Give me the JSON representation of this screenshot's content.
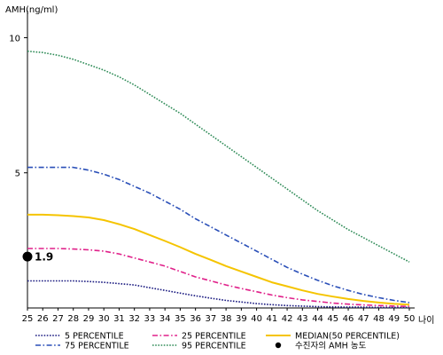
{
  "chart_data": {
    "type": "line",
    "ylabel": "AMH(ng/ml)",
    "xlabel": "나이",
    "x": [
      25,
      26,
      27,
      28,
      29,
      30,
      31,
      32,
      33,
      34,
      35,
      36,
      37,
      38,
      39,
      40,
      41,
      42,
      43,
      44,
      45,
      46,
      47,
      48,
      49,
      50
    ],
    "xlim": [
      25,
      50
    ],
    "ylim": [
      0,
      11
    ],
    "yticks": [
      5,
      10
    ],
    "series": [
      {
        "name": "5 PERCENTILE",
        "color": "#1a1a80",
        "dash": "dotted",
        "values": [
          1.0,
          1.0,
          1.0,
          1.0,
          0.98,
          0.95,
          0.9,
          0.85,
          0.75,
          0.65,
          0.55,
          0.45,
          0.36,
          0.28,
          0.22,
          0.16,
          0.12,
          0.09,
          0.07,
          0.05,
          0.04,
          0.03,
          0.03,
          0.02,
          0.02,
          0.02
        ]
      },
      {
        "name": "25 PERCENTILE",
        "color": "#e0218a",
        "dash": "dashdot",
        "values": [
          2.2,
          2.2,
          2.2,
          2.18,
          2.15,
          2.1,
          2.0,
          1.85,
          1.7,
          1.55,
          1.35,
          1.15,
          1.0,
          0.85,
          0.72,
          0.6,
          0.48,
          0.38,
          0.3,
          0.24,
          0.18,
          0.14,
          0.11,
          0.09,
          0.07,
          0.06
        ]
      },
      {
        "name": "MEDIAN(50 PERCENTILE)",
        "color": "#f5c400",
        "dash": "solid",
        "values": [
          3.45,
          3.45,
          3.43,
          3.4,
          3.35,
          3.25,
          3.1,
          2.92,
          2.7,
          2.48,
          2.25,
          2.0,
          1.78,
          1.55,
          1.35,
          1.15,
          0.95,
          0.8,
          0.65,
          0.52,
          0.42,
          0.33,
          0.26,
          0.2,
          0.15,
          0.12
        ]
      },
      {
        "name": "75 PERCENTILE",
        "color": "#2a4fb8",
        "dash": "dashdot",
        "values": [
          5.2,
          5.2,
          5.2,
          5.2,
          5.1,
          4.95,
          4.75,
          4.5,
          4.25,
          3.95,
          3.65,
          3.3,
          3.0,
          2.7,
          2.4,
          2.1,
          1.8,
          1.5,
          1.25,
          1.02,
          0.82,
          0.65,
          0.5,
          0.38,
          0.28,
          0.2
        ]
      },
      {
        "name": "95 PERCENTILE",
        "color": "#2e8b57",
        "dash": "dotted",
        "values": [
          9.5,
          9.45,
          9.35,
          9.2,
          9.0,
          8.8,
          8.55,
          8.25,
          7.9,
          7.55,
          7.2,
          6.8,
          6.4,
          6.0,
          5.6,
          5.2,
          4.8,
          4.4,
          4.0,
          3.6,
          3.25,
          2.9,
          2.6,
          2.3,
          2.0,
          1.7
        ]
      }
    ],
    "marker": {
      "name": "수진자의 AMH 농도",
      "x": 25,
      "y": 1.9,
      "label": "1.9",
      "color": "#000000"
    },
    "legend": {
      "placement": "bottom"
    }
  }
}
